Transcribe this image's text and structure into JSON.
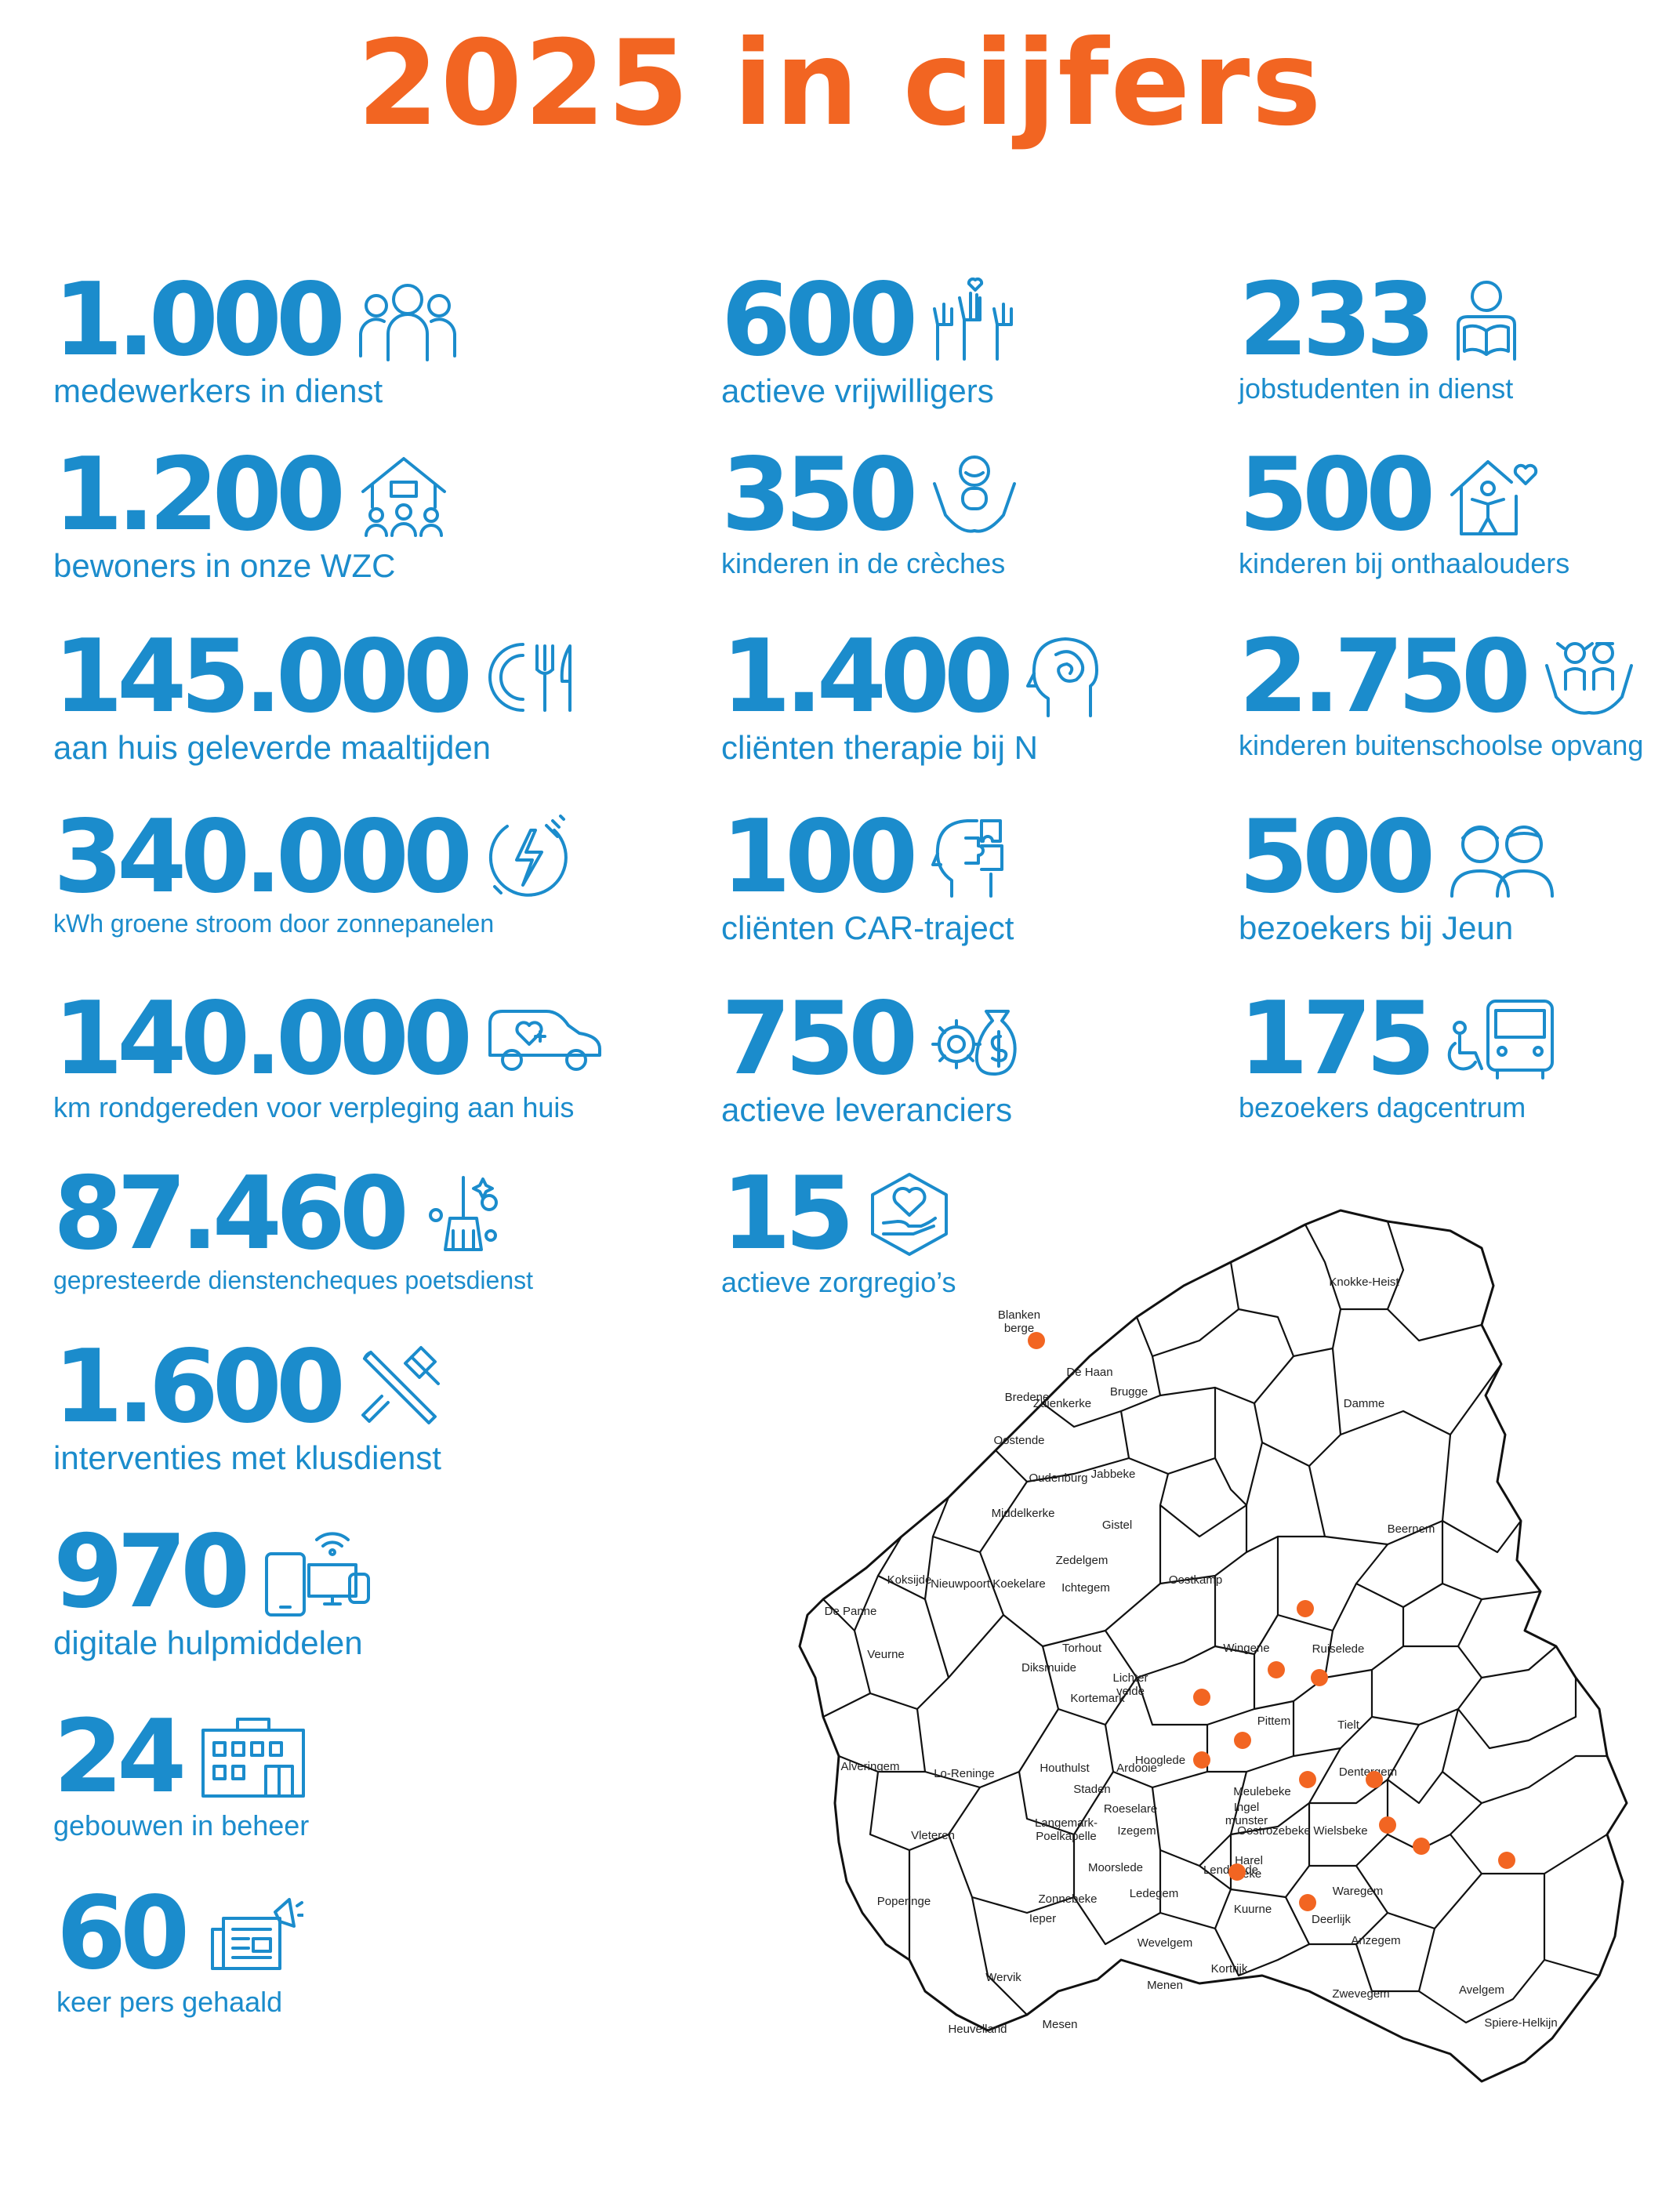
{
  "title": "2025 in cijfers",
  "colors": {
    "title": "#f26522",
    "accent": "#1b8ccc",
    "dot": "#f26522"
  },
  "stats": {
    "col1": [
      {
        "number": "1.000",
        "label": "medewerkers in dienst",
        "icon": "people-group-icon"
      },
      {
        "number": "1.200",
        "label": "bewoners in onze WZC",
        "icon": "care-home-icon"
      },
      {
        "number": "145.000",
        "label": "aan huis geleverde maaltijden",
        "icon": "plate-cutlery-icon"
      },
      {
        "number": "340.000",
        "label": "kWh groene stroom door zonnepanelen",
        "icon": "electricity-plug-icon"
      },
      {
        "number": "140.000",
        "label": "km rondgereden voor verpleging aan huis",
        "icon": "care-car-icon"
      },
      {
        "number": "87.460",
        "label": "gepresteerde dienstencheques poetsdienst",
        "icon": "broom-cleaning-icon"
      },
      {
        "number": "1.600",
        "label": "interventies met klusdienst",
        "icon": "tools-wrench-hammer-icon"
      },
      {
        "number": "970",
        "label": "digitale hulpmiddelen",
        "icon": "digital-devices-icon"
      },
      {
        "number": "24",
        "label": "gebouwen in beheer",
        "icon": "building-icon"
      },
      {
        "number": "60",
        "label": "keer pers gehaald",
        "icon": "newspaper-megaphone-icon"
      }
    ],
    "col2": [
      {
        "number": "600",
        "label": "actieve vrijwilligers",
        "icon": "raised-hands-icon"
      },
      {
        "number": "350",
        "label": "kinderen in de crèches",
        "icon": "baby-hands-icon"
      },
      {
        "number": "1.400",
        "label": "cliënten therapie bij N",
        "icon": "head-brain-icon"
      },
      {
        "number": "100",
        "label": "cliënten CAR-traject",
        "icon": "head-puzzle-icon"
      },
      {
        "number": "750",
        "label": "actieve leveranciers",
        "icon": "gear-money-bag-icon"
      },
      {
        "number": "15",
        "label": "actieve zorgregio’s",
        "icon": "hexagon-heart-hand-icon"
      }
    ],
    "col3": [
      {
        "number": "233",
        "label": "jobstudenten in dienst",
        "icon": "student-reading-icon"
      },
      {
        "number": "500",
        "label": "kinderen bij onthaalouders",
        "icon": "house-child-heart-icon"
      },
      {
        "number": "2.750",
        "label": "kinderen buitenschoolse opvang",
        "icon": "children-hands-icon"
      },
      {
        "number": "500",
        "label": "bezoekers bij Jeun",
        "icon": "elderly-couple-icon"
      },
      {
        "number": "175",
        "label": "bezoekers dagcentrum",
        "icon": "bus-wheelchair-icon"
      }
    ]
  },
  "map": {
    "towns": [
      "Knokke-Heist",
      "Blanken berge",
      "De Haan",
      "Bredene",
      "Zuienkerke",
      "Brugge",
      "Damme",
      "Oostende",
      "Oudenburg",
      "Jabbeke",
      "Middelkerke",
      "Gistel",
      "Beernem",
      "Koksijde",
      "Nieuwpoort",
      "Zedelgem",
      "Oostkamp",
      "De Panne",
      "Koekelare",
      "Ichtegem",
      "Torhout",
      "Wingene",
      "Ruiselede",
      "Veurne",
      "Diksmuide",
      "Kortemark",
      "Lichter velde",
      "Pittem",
      "Tielt",
      "Alveringem",
      "Houthulst",
      "Hooglede",
      "Ardooie",
      "Lo-Reninge",
      "Staden",
      "Dentergem",
      "Meulebeke",
      "Roeselare",
      "Ingel munster",
      "Oostrozebeke",
      "Izegem",
      "Wielsbeke",
      "Vleteren",
      "Langemark- Poelkapelle",
      "Moorslede",
      "Lendelede",
      "Harel beke",
      "Poperinge",
      "Zonnebeke",
      "Ledegem",
      "Waregem",
      "Ieper",
      "Kuurne",
      "Deerlijk",
      "Wevelgem",
      "Anzegem",
      "Wervik",
      "Kortrijk",
      "Menen",
      "Zwevegem",
      "Heuvelland",
      "Mesen",
      "Avelgem",
      "Spiere-Helkijn"
    ]
  }
}
